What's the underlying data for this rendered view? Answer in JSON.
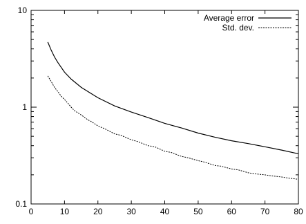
{
  "chart_data": {
    "type": "line",
    "title": "",
    "xlabel": "",
    "ylabel": "",
    "x_scale": "linear",
    "y_scale": "log",
    "xlim": [
      0,
      80
    ],
    "ylim": [
      0.1,
      10
    ],
    "x_ticks": [
      "0",
      "10",
      "20",
      "30",
      "40",
      "50",
      "60",
      "70",
      "80"
    ],
    "y_ticks": [
      "0.1",
      "1",
      "10"
    ],
    "grid": false,
    "legend": "top-right",
    "series": [
      {
        "name": "Average error",
        "style": "solid",
        "color": "#000000",
        "x": [
          5,
          6,
          7,
          8,
          10,
          12,
          15,
          18,
          20,
          25,
          30,
          35,
          40,
          45,
          50,
          55,
          60,
          65,
          70,
          75,
          80
        ],
        "y": [
          4.7,
          3.9,
          3.3,
          2.9,
          2.3,
          1.95,
          1.6,
          1.38,
          1.25,
          1.03,
          0.89,
          0.78,
          0.68,
          0.61,
          0.54,
          0.49,
          0.45,
          0.42,
          0.39,
          0.36,
          0.33
        ]
      },
      {
        "name": "Std. dev.",
        "style": "dashed",
        "color": "#000000",
        "x": [
          5,
          6,
          7,
          8,
          9,
          10,
          11,
          12,
          13,
          15,
          17,
          18,
          20,
          22,
          25,
          27,
          30,
          32,
          35,
          37,
          40,
          42,
          45,
          47,
          50,
          52,
          55,
          57,
          60,
          62,
          65,
          67,
          70,
          72,
          75,
          77,
          80
        ],
        "y": [
          2.1,
          1.85,
          1.6,
          1.45,
          1.3,
          1.2,
          1.1,
          1.0,
          0.92,
          0.83,
          0.74,
          0.71,
          0.64,
          0.6,
          0.53,
          0.51,
          0.46,
          0.44,
          0.4,
          0.39,
          0.35,
          0.34,
          0.31,
          0.3,
          0.28,
          0.27,
          0.25,
          0.245,
          0.23,
          0.225,
          0.21,
          0.205,
          0.2,
          0.195,
          0.19,
          0.185,
          0.18
        ]
      }
    ]
  }
}
